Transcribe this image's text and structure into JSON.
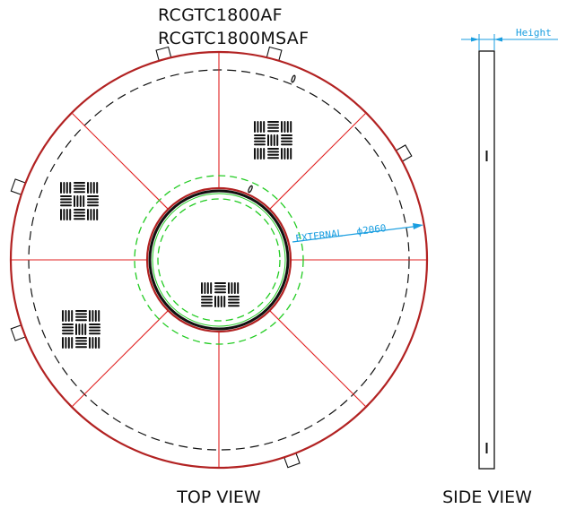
{
  "models": [
    "RCGTC1800AF",
    "RCGTC1800MSAF"
  ],
  "views": {
    "top": "TOP VIEW",
    "side": "SIDE VIEW"
  },
  "dimension": {
    "external_label": "EXTERNAL",
    "diameter": "ϕ2060",
    "height_label": "Height"
  },
  "colors": {
    "outline": "#b22222",
    "spoke": "#e02020",
    "hidden": "#111111",
    "ring": "#22cc22",
    "dimension": "#1a9ee0"
  },
  "spoke_count": 8,
  "texture_blocks": 4,
  "lugs": 6
}
